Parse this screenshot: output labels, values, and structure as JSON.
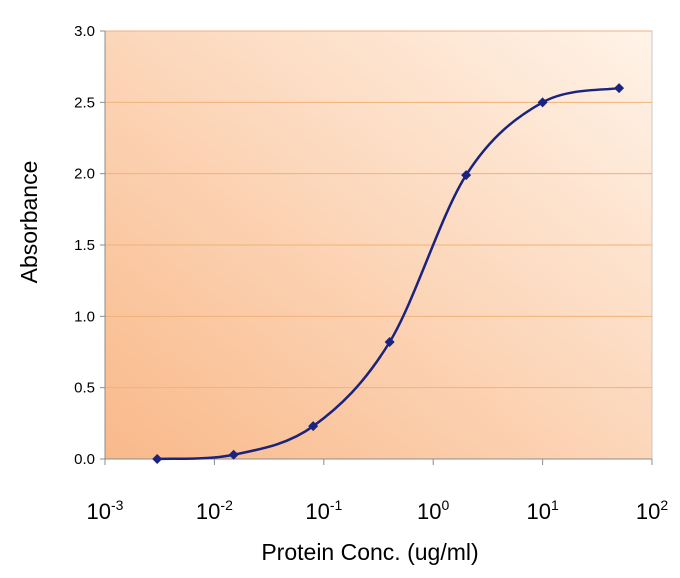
{
  "chart_data": {
    "type": "line",
    "xlabel": "Protein Conc. (ug/ml)",
    "ylabel": "Absorbance",
    "x_scale": "log",
    "xlim": [
      0.001,
      100
    ],
    "ylim": [
      0,
      3.0
    ],
    "x_ticks": [
      {
        "base": "10",
        "exp": "-3",
        "value": 0.001
      },
      {
        "base": "10",
        "exp": "-2",
        "value": 0.01
      },
      {
        "base": "10",
        "exp": "-1",
        "value": 0.1
      },
      {
        "base": "10",
        "exp": "0",
        "value": 1
      },
      {
        "base": "10",
        "exp": "1",
        "value": 10
      },
      {
        "base": "10",
        "exp": "2",
        "value": 100
      }
    ],
    "y_ticks": [
      "0.0",
      "0.5",
      "1.0",
      "1.5",
      "2.0",
      "2.5",
      "3.0"
    ],
    "grid": "horizontal",
    "legend": "none",
    "series": [
      {
        "x": [
          0.003,
          0.015,
          0.08,
          0.4,
          2.0,
          10,
          50
        ],
        "y": [
          0.0,
          0.03,
          0.23,
          0.82,
          1.99,
          2.5,
          2.6
        ],
        "color": "#1a237e",
        "marker": "diamond",
        "smooth": true
      }
    ],
    "plot_background": [
      "#f9b98a",
      "#fff3e8"
    ],
    "gridline_color": "#f0b278"
  }
}
